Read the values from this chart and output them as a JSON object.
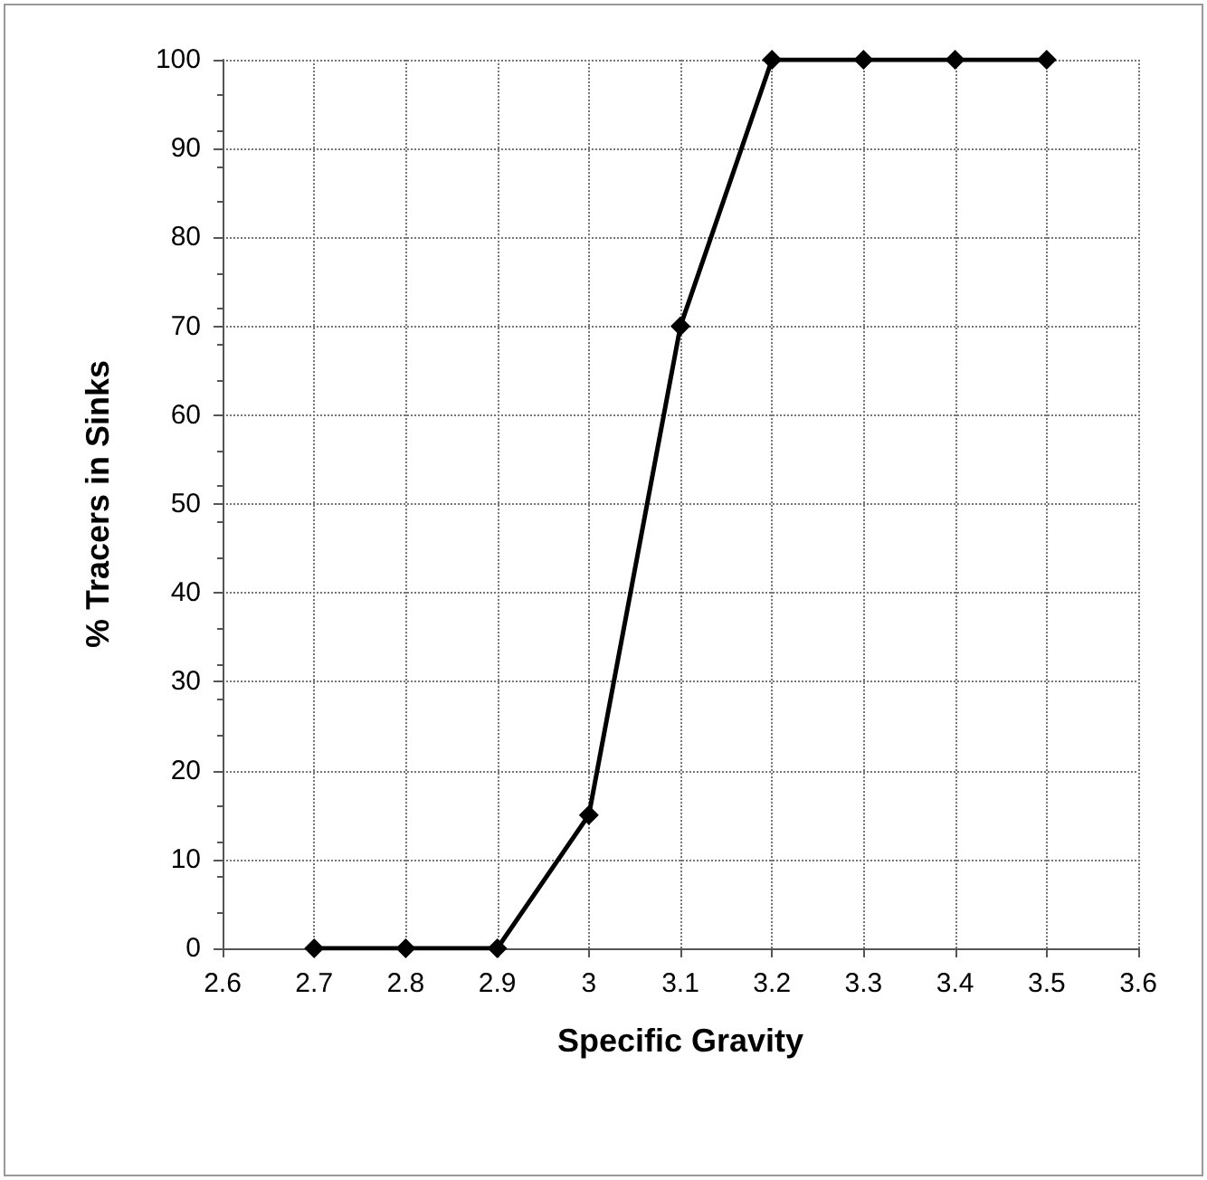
{
  "chart_data": {
    "type": "line",
    "xlabel": "Specific Gravity",
    "ylabel": "% Tracers in Sinks",
    "x": [
      2.7,
      2.8,
      2.9,
      3,
      3.1,
      3.2,
      3.3,
      3.4,
      3.5
    ],
    "series": [
      {
        "color": "#000000",
        "values": [
          0,
          0,
          0,
          15,
          70,
          100,
          100,
          100,
          100
        ]
      }
    ],
    "xlim": [
      2.6,
      3.6
    ],
    "xticks": [
      2.6,
      2.7,
      2.8,
      2.9,
      3,
      3.1,
      3.2,
      3.3,
      3.4,
      3.5,
      3.6
    ],
    "ylim": [
      0,
      100
    ],
    "yticks": [
      0,
      10,
      20,
      30,
      40,
      50,
      60,
      70,
      80,
      90,
      100
    ],
    "grid": true,
    "marker": "diamond",
    "line_style": "solid"
  }
}
